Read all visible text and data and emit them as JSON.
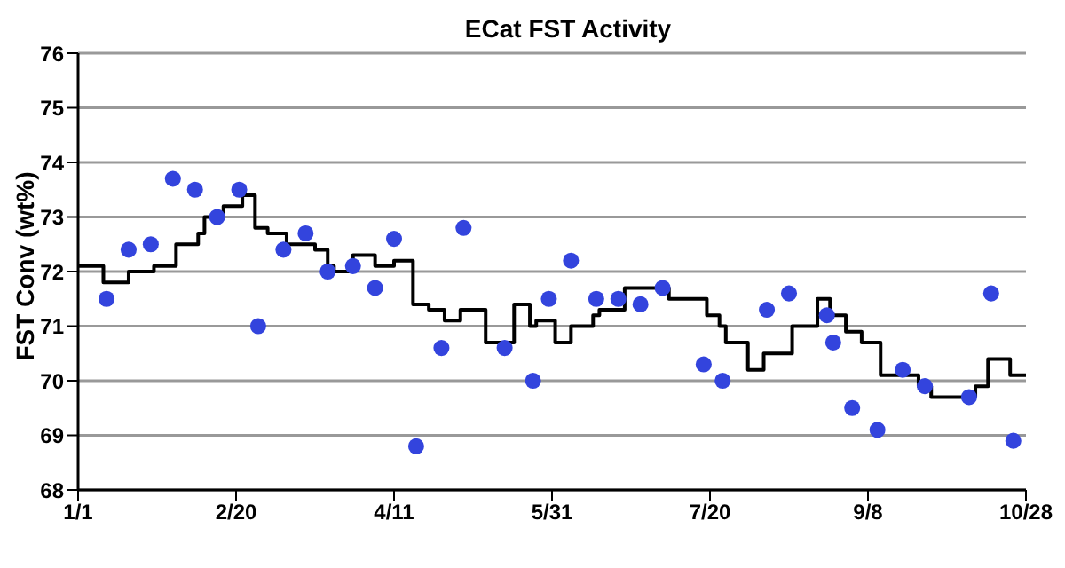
{
  "chart_data": {
    "type": "scatter",
    "title": "ECat FST Activity",
    "ylabel": "FST Conv (wt%)",
    "xlim": [
      "--01-01",
      "--10-28"
    ],
    "xticks": [
      {
        "value": "--01-01",
        "label": "1/1"
      },
      {
        "value": "--02-20",
        "label": "2/20"
      },
      {
        "value": "--04-11",
        "label": "4/11"
      },
      {
        "value": "--05-31",
        "label": "5/31"
      },
      {
        "value": "--07-20",
        "label": "7/20"
      },
      {
        "value": "--09-08",
        "label": "9/8"
      },
      {
        "value": "--10-28",
        "label": "10/28"
      }
    ],
    "ylim": [
      68,
      76
    ],
    "yticks": [
      68,
      69,
      70,
      71,
      72,
      73,
      74,
      75,
      76
    ],
    "grid": "y",
    "series": [
      {
        "color": "#3344dd",
        "marker": "circle",
        "x": [
          "--01-10",
          "--01-17",
          "--01-24",
          "--01-31",
          "--02-07",
          "--02-14",
          "--02-21",
          "--02-27",
          "--03-07",
          "--03-14",
          "--03-21",
          "--03-29",
          "--04-05",
          "--04-11",
          "--04-18",
          "--04-26",
          "--05-03",
          "--05-16",
          "--05-25",
          "--05-30",
          "--06-06",
          "--06-14",
          "--06-21",
          "--06-28",
          "--07-05",
          "--07-18",
          "--07-24",
          "--08-07",
          "--08-14",
          "--08-26",
          "--08-28",
          "--09-03",
          "--09-11",
          "--09-19",
          "--09-26",
          "--10-10",
          "--10-17",
          "--10-24"
        ],
        "values": [
          71.5,
          72.4,
          72.5,
          73.7,
          73.5,
          73.0,
          73.5,
          71.0,
          72.4,
          72.7,
          72.0,
          72.1,
          71.7,
          72.6,
          68.8,
          70.6,
          72.8,
          70.6,
          70.0,
          71.5,
          72.2,
          71.5,
          71.5,
          71.4,
          71.7,
          70.3,
          70.0,
          71.3,
          71.6,
          71.2,
          70.7,
          69.5,
          69.1,
          70.2,
          69.9,
          69.7,
          71.6,
          68.9
        ]
      },
      {
        "type": "step",
        "color": "#000000",
        "marker": "none",
        "x": [
          "--01-01",
          "--01-09",
          "--01-17",
          "--01-25",
          "--02-01",
          "--02-08",
          "--02-10",
          "--02-16",
          "--02-22",
          "--02-26",
          "--03-02",
          "--03-08",
          "--03-17",
          "--03-21",
          "--03-23",
          "--03-29",
          "--04-05",
          "--04-11",
          "--04-17",
          "--04-22",
          "--04-27",
          "--05-02",
          "--05-10",
          "--05-19",
          "--05-24",
          "--05-26",
          "--06-01",
          "--06-06",
          "--06-13",
          "--06-15",
          "--06-23",
          "--07-07",
          "--07-19",
          "--07-23",
          "--07-25",
          "--08-01",
          "--08-06",
          "--08-15",
          "--08-23",
          "--08-27",
          "--09-01",
          "--09-06",
          "--09-12",
          "--09-24",
          "--09-28",
          "--10-12",
          "--10-16",
          "--10-23",
          "--10-28"
        ],
        "values": [
          72.1,
          71.8,
          72.0,
          72.1,
          72.5,
          72.7,
          73.0,
          73.2,
          73.4,
          72.8,
          72.7,
          72.5,
          72.4,
          72.1,
          72.0,
          72.3,
          72.1,
          72.2,
          71.4,
          71.3,
          71.1,
          71.3,
          70.7,
          71.4,
          71.0,
          71.1,
          70.7,
          71.0,
          71.2,
          71.3,
          71.7,
          71.5,
          71.2,
          71.0,
          70.7,
          70.2,
          70.5,
          71.0,
          71.5,
          71.2,
          70.9,
          70.7,
          70.1,
          69.9,
          69.7,
          69.9,
          70.4,
          70.1,
          70.1
        ]
      }
    ]
  }
}
